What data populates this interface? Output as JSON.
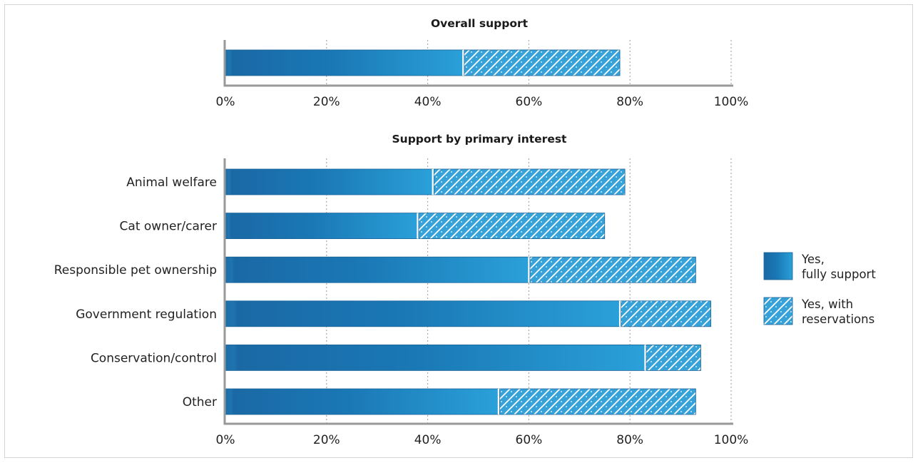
{
  "chart_data": [
    {
      "type": "bar",
      "orientation": "horizontal",
      "stacked": true,
      "title": "Overall support",
      "categories": [
        ""
      ],
      "series": [
        {
          "name": "Yes, fully support",
          "values": [
            47
          ]
        },
        {
          "name": "Yes, with reservations",
          "values": [
            31
          ]
        }
      ],
      "xlim": [
        0,
        100
      ],
      "xticks": [
        "0%",
        "20%",
        "40%",
        "60%",
        "80%",
        "100%"
      ],
      "grid": true
    },
    {
      "type": "bar",
      "orientation": "horizontal",
      "stacked": true,
      "title": "Support by primary interest",
      "categories": [
        "Animal welfare",
        "Cat owner/carer",
        "Responsible pet ownership",
        "Government regulation",
        "Conservation/control",
        "Other"
      ],
      "series": [
        {
          "name": "Yes, fully support",
          "values": [
            41,
            38,
            60,
            78,
            83,
            54
          ]
        },
        {
          "name": "Yes, with reservations",
          "values": [
            38,
            37,
            33,
            18,
            11,
            39
          ]
        }
      ],
      "xlim": [
        0,
        100
      ],
      "xticks": [
        "0%",
        "20%",
        "40%",
        "60%",
        "80%",
        "100%"
      ],
      "grid": true
    }
  ],
  "legend": {
    "placement": "right",
    "items": [
      {
        "line1": "Yes,",
        "line2": "fully support",
        "style": "solid"
      },
      {
        "line1": "Yes, with",
        "line2": "reservations",
        "style": "hatched"
      }
    ]
  },
  "colors": {
    "bar_dark": "#1a6aa6",
    "bar_light": "#2a9fd8",
    "hatch_bg": "#3aa3d8",
    "hatch_line": "#ffffff",
    "axis": "#999999",
    "grid": "#aaaaaa"
  }
}
